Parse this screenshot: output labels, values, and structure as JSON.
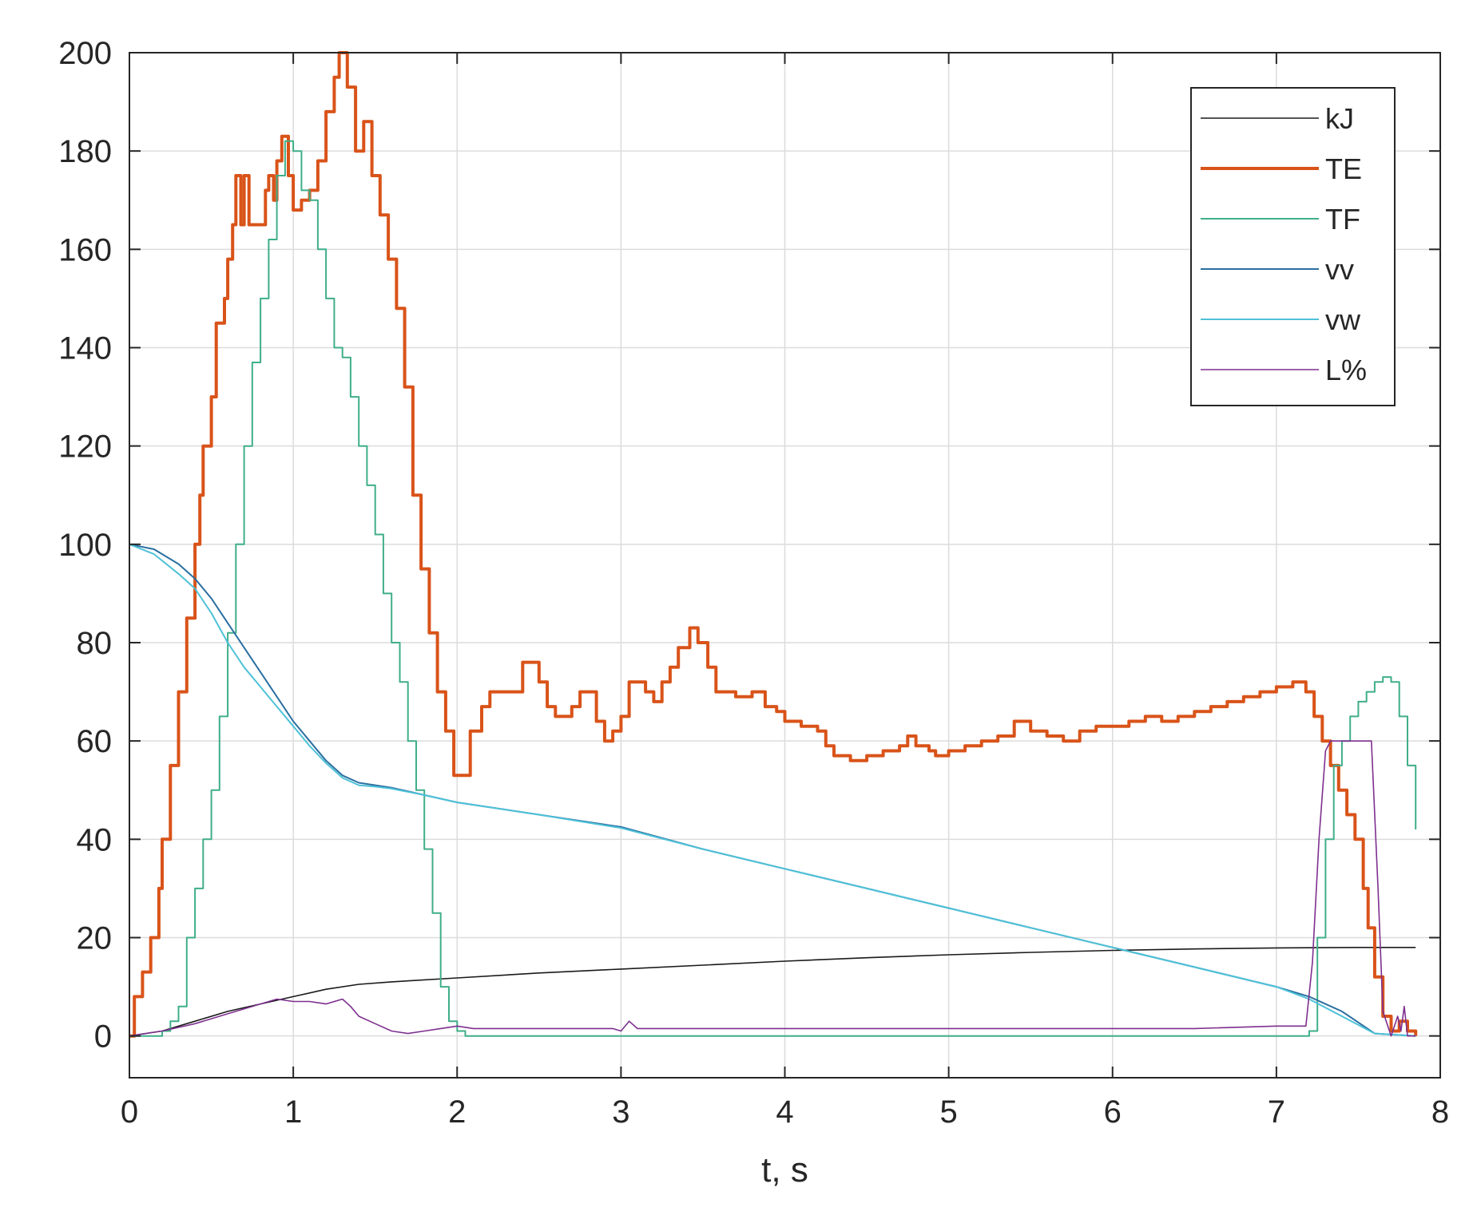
{
  "chart_data": {
    "type": "line",
    "title": "",
    "xlabel": "t, s",
    "ylabel": "",
    "xlim": [
      0,
      8
    ],
    "ylim": [
      -8.5,
      200
    ],
    "xticks": [
      "0",
      "1",
      "2",
      "3",
      "4",
      "5",
      "6",
      "7",
      "8"
    ],
    "yticks": [
      "0",
      "20",
      "40",
      "60",
      "80",
      "100",
      "120",
      "140",
      "160",
      "180",
      "200"
    ],
    "grid": true,
    "legend_position": "top-right",
    "series": [
      {
        "name": "kJ",
        "color": "#1a1a1a",
        "width": 1.6,
        "points": [
          [
            0,
            0
          ],
          [
            0.2,
            1
          ],
          [
            0.4,
            3
          ],
          [
            0.6,
            5
          ],
          [
            0.8,
            6.5
          ],
          [
            1.0,
            8
          ],
          [
            1.2,
            9.5
          ],
          [
            1.4,
            10.5
          ],
          [
            1.6,
            11
          ],
          [
            2.0,
            11.8
          ],
          [
            2.5,
            12.8
          ],
          [
            3.0,
            13.6
          ],
          [
            3.5,
            14.4
          ],
          [
            4.0,
            15.2
          ],
          [
            4.5,
            15.9
          ],
          [
            5.0,
            16.5
          ],
          [
            5.5,
            17.0
          ],
          [
            6.0,
            17.4
          ],
          [
            6.5,
            17.7
          ],
          [
            7.0,
            17.9
          ],
          [
            7.5,
            18
          ],
          [
            7.85,
            18
          ]
        ]
      },
      {
        "name": "TE",
        "color": "#d95319",
        "width": 4,
        "step": true,
        "points": [
          [
            0,
            0
          ],
          [
            0.03,
            8
          ],
          [
            0.08,
            13
          ],
          [
            0.13,
            20
          ],
          [
            0.18,
            30
          ],
          [
            0.2,
            40
          ],
          [
            0.25,
            55
          ],
          [
            0.3,
            70
          ],
          [
            0.35,
            85
          ],
          [
            0.4,
            100
          ],
          [
            0.43,
            110
          ],
          [
            0.45,
            120
          ],
          [
            0.5,
            130
          ],
          [
            0.53,
            145
          ],
          [
            0.58,
            150
          ],
          [
            0.6,
            158
          ],
          [
            0.63,
            165
          ],
          [
            0.65,
            175
          ],
          [
            0.68,
            165
          ],
          [
            0.7,
            175
          ],
          [
            0.73,
            165
          ],
          [
            0.8,
            165
          ],
          [
            0.83,
            172
          ],
          [
            0.85,
            175
          ],
          [
            0.88,
            170
          ],
          [
            0.9,
            178
          ],
          [
            0.93,
            183
          ],
          [
            0.97,
            175
          ],
          [
            1.0,
            168
          ],
          [
            1.05,
            170
          ],
          [
            1.1,
            172
          ],
          [
            1.15,
            178
          ],
          [
            1.2,
            188
          ],
          [
            1.25,
            195
          ],
          [
            1.28,
            200
          ],
          [
            1.33,
            193
          ],
          [
            1.38,
            180
          ],
          [
            1.43,
            186
          ],
          [
            1.48,
            175
          ],
          [
            1.53,
            167
          ],
          [
            1.58,
            158
          ],
          [
            1.63,
            148
          ],
          [
            1.68,
            132
          ],
          [
            1.73,
            110
          ],
          [
            1.78,
            95
          ],
          [
            1.83,
            82
          ],
          [
            1.88,
            70
          ],
          [
            1.93,
            62
          ],
          [
            1.98,
            53
          ],
          [
            2.08,
            62
          ],
          [
            2.15,
            67
          ],
          [
            2.2,
            70
          ],
          [
            2.4,
            76
          ],
          [
            2.5,
            72
          ],
          [
            2.55,
            67
          ],
          [
            2.6,
            65
          ],
          [
            2.7,
            67
          ],
          [
            2.75,
            70
          ],
          [
            2.85,
            64
          ],
          [
            2.9,
            60
          ],
          [
            2.95,
            62
          ],
          [
            3.0,
            65
          ],
          [
            3.05,
            72
          ],
          [
            3.15,
            70
          ],
          [
            3.2,
            68
          ],
          [
            3.25,
            72
          ],
          [
            3.3,
            75
          ],
          [
            3.35,
            79
          ],
          [
            3.42,
            83
          ],
          [
            3.47,
            80
          ],
          [
            3.53,
            75
          ],
          [
            3.58,
            70
          ],
          [
            3.7,
            69
          ],
          [
            3.8,
            70
          ],
          [
            3.88,
            67
          ],
          [
            3.95,
            66
          ],
          [
            4.0,
            64
          ],
          [
            4.1,
            63
          ],
          [
            4.2,
            62
          ],
          [
            4.25,
            59
          ],
          [
            4.3,
            57
          ],
          [
            4.4,
            56
          ],
          [
            4.5,
            57
          ],
          [
            4.6,
            58
          ],
          [
            4.7,
            59
          ],
          [
            4.75,
            61
          ],
          [
            4.8,
            59
          ],
          [
            4.88,
            58
          ],
          [
            4.92,
            57
          ],
          [
            5.0,
            58
          ],
          [
            5.1,
            59
          ],
          [
            5.2,
            60
          ],
          [
            5.3,
            61
          ],
          [
            5.4,
            64
          ],
          [
            5.5,
            62
          ],
          [
            5.6,
            61
          ],
          [
            5.7,
            60
          ],
          [
            5.8,
            62
          ],
          [
            5.9,
            63
          ],
          [
            6.0,
            63
          ],
          [
            6.1,
            64
          ],
          [
            6.2,
            65
          ],
          [
            6.3,
            64
          ],
          [
            6.4,
            65
          ],
          [
            6.5,
            66
          ],
          [
            6.6,
            67
          ],
          [
            6.7,
            68
          ],
          [
            6.8,
            69
          ],
          [
            6.9,
            70
          ],
          [
            7.0,
            71
          ],
          [
            7.1,
            72
          ],
          [
            7.18,
            70
          ],
          [
            7.23,
            65
          ],
          [
            7.28,
            60
          ],
          [
            7.33,
            55
          ],
          [
            7.38,
            50
          ],
          [
            7.43,
            45
          ],
          [
            7.48,
            40
          ],
          [
            7.53,
            30
          ],
          [
            7.56,
            22
          ],
          [
            7.6,
            12
          ],
          [
            7.65,
            4
          ],
          [
            7.7,
            1
          ],
          [
            7.75,
            3
          ],
          [
            7.8,
            1
          ],
          [
            7.85,
            0
          ]
        ]
      },
      {
        "name": "TF",
        "color": "#3fae8a",
        "width": 2,
        "step": true,
        "points": [
          [
            0,
            0
          ],
          [
            0.2,
            1
          ],
          [
            0.25,
            3
          ],
          [
            0.3,
            6
          ],
          [
            0.35,
            20
          ],
          [
            0.4,
            30
          ],
          [
            0.45,
            40
          ],
          [
            0.5,
            50
          ],
          [
            0.55,
            65
          ],
          [
            0.6,
            82
          ],
          [
            0.65,
            100
          ],
          [
            0.7,
            120
          ],
          [
            0.75,
            137
          ],
          [
            0.8,
            150
          ],
          [
            0.85,
            162
          ],
          [
            0.9,
            175
          ],
          [
            0.95,
            182
          ],
          [
            1.0,
            180
          ],
          [
            1.05,
            172
          ],
          [
            1.1,
            170
          ],
          [
            1.15,
            160
          ],
          [
            1.2,
            150
          ],
          [
            1.25,
            140
          ],
          [
            1.3,
            138
          ],
          [
            1.35,
            130
          ],
          [
            1.4,
            120
          ],
          [
            1.45,
            112
          ],
          [
            1.5,
            102
          ],
          [
            1.55,
            90
          ],
          [
            1.6,
            80
          ],
          [
            1.65,
            72
          ],
          [
            1.7,
            60
          ],
          [
            1.75,
            50
          ],
          [
            1.8,
            38
          ],
          [
            1.85,
            25
          ],
          [
            1.9,
            10
          ],
          [
            1.95,
            3
          ],
          [
            2.0,
            1
          ],
          [
            2.05,
            0
          ],
          [
            7.15,
            0
          ],
          [
            7.2,
            1
          ],
          [
            7.25,
            20
          ],
          [
            7.3,
            40
          ],
          [
            7.35,
            55
          ],
          [
            7.4,
            60
          ],
          [
            7.45,
            65
          ],
          [
            7.5,
            68
          ],
          [
            7.55,
            70
          ],
          [
            7.6,
            72
          ],
          [
            7.65,
            73
          ],
          [
            7.7,
            72
          ],
          [
            7.75,
            65
          ],
          [
            7.8,
            55
          ],
          [
            7.85,
            42
          ]
        ]
      },
      {
        "name": "vv",
        "color": "#2a6fa0",
        "width": 2,
        "points": [
          [
            0,
            100
          ],
          [
            0.15,
            99
          ],
          [
            0.3,
            96
          ],
          [
            0.4,
            93
          ],
          [
            0.5,
            89
          ],
          [
            0.6,
            84
          ],
          [
            0.7,
            79
          ],
          [
            0.8,
            74
          ],
          [
            0.9,
            69
          ],
          [
            1.0,
            64
          ],
          [
            1.1,
            60
          ],
          [
            1.2,
            56
          ],
          [
            1.3,
            53
          ],
          [
            1.4,
            51.5
          ],
          [
            1.5,
            51
          ],
          [
            1.6,
            50.5
          ],
          [
            1.8,
            49
          ],
          [
            2.0,
            47.5
          ],
          [
            2.5,
            45
          ],
          [
            3.0,
            42.5
          ],
          [
            3.5,
            38
          ],
          [
            4.0,
            34
          ],
          [
            4.5,
            30
          ],
          [
            5.0,
            26
          ],
          [
            5.5,
            22
          ],
          [
            6.0,
            18
          ],
          [
            6.5,
            14
          ],
          [
            7.0,
            10
          ],
          [
            7.2,
            8
          ],
          [
            7.4,
            5
          ],
          [
            7.6,
            0.5
          ],
          [
            7.85,
            0
          ]
        ]
      },
      {
        "name": "vw",
        "color": "#4ec1d8",
        "width": 2,
        "points": [
          [
            0,
            100
          ],
          [
            0.15,
            98
          ],
          [
            0.3,
            94
          ],
          [
            0.4,
            91
          ],
          [
            0.5,
            86
          ],
          [
            0.6,
            80
          ],
          [
            0.7,
            75
          ],
          [
            0.8,
            71
          ],
          [
            0.9,
            67
          ],
          [
            1.0,
            63
          ],
          [
            1.1,
            59
          ],
          [
            1.2,
            55.5
          ],
          [
            1.3,
            52.5
          ],
          [
            1.4,
            51
          ],
          [
            1.5,
            50.7
          ],
          [
            1.6,
            50.3
          ],
          [
            1.8,
            49
          ],
          [
            2.0,
            47.5
          ],
          [
            2.5,
            45
          ],
          [
            3.0,
            42.3
          ],
          [
            3.5,
            38
          ],
          [
            4.0,
            34
          ],
          [
            4.5,
            30
          ],
          [
            5.0,
            26
          ],
          [
            5.5,
            22
          ],
          [
            6.0,
            18
          ],
          [
            6.5,
            14
          ],
          [
            7.0,
            10
          ],
          [
            7.2,
            7.5
          ],
          [
            7.4,
            4
          ],
          [
            7.6,
            0.5
          ],
          [
            7.85,
            0
          ]
        ]
      },
      {
        "name": "L%",
        "color": "#7e2f8e",
        "width": 1.6,
        "points": [
          [
            0,
            0
          ],
          [
            0.2,
            1
          ],
          [
            0.4,
            2.5
          ],
          [
            0.6,
            4.5
          ],
          [
            0.8,
            6.5
          ],
          [
            0.9,
            7.5
          ],
          [
            1.0,
            7
          ],
          [
            1.1,
            7
          ],
          [
            1.2,
            6.5
          ],
          [
            1.3,
            7.5
          ],
          [
            1.35,
            6
          ],
          [
            1.4,
            4
          ],
          [
            1.5,
            2.5
          ],
          [
            1.6,
            1
          ],
          [
            1.7,
            0.5
          ],
          [
            1.8,
            1
          ],
          [
            1.9,
            1.5
          ],
          [
            2.0,
            2
          ],
          [
            2.1,
            1.5
          ],
          [
            2.2,
            1.5
          ],
          [
            2.4,
            1.5
          ],
          [
            2.6,
            1.5
          ],
          [
            2.8,
            1.5
          ],
          [
            2.95,
            1.5
          ],
          [
            3.0,
            1
          ],
          [
            3.05,
            3
          ],
          [
            3.1,
            1.5
          ],
          [
            3.3,
            1.5
          ],
          [
            3.5,
            1.5
          ],
          [
            3.8,
            1.5
          ],
          [
            4.0,
            1.5
          ],
          [
            4.5,
            1.5
          ],
          [
            5.0,
            1.5
          ],
          [
            5.5,
            1.5
          ],
          [
            6.0,
            1.5
          ],
          [
            6.5,
            1.5
          ],
          [
            7.0,
            2
          ],
          [
            7.18,
            2
          ],
          [
            7.22,
            15
          ],
          [
            7.26,
            40
          ],
          [
            7.3,
            58
          ],
          [
            7.33,
            60
          ],
          [
            7.58,
            60
          ],
          [
            7.62,
            30
          ],
          [
            7.65,
            5
          ],
          [
            7.7,
            0
          ],
          [
            7.74,
            4
          ],
          [
            7.76,
            1
          ],
          [
            7.78,
            6
          ],
          [
            7.8,
            0
          ],
          [
            7.85,
            0
          ]
        ]
      }
    ]
  }
}
